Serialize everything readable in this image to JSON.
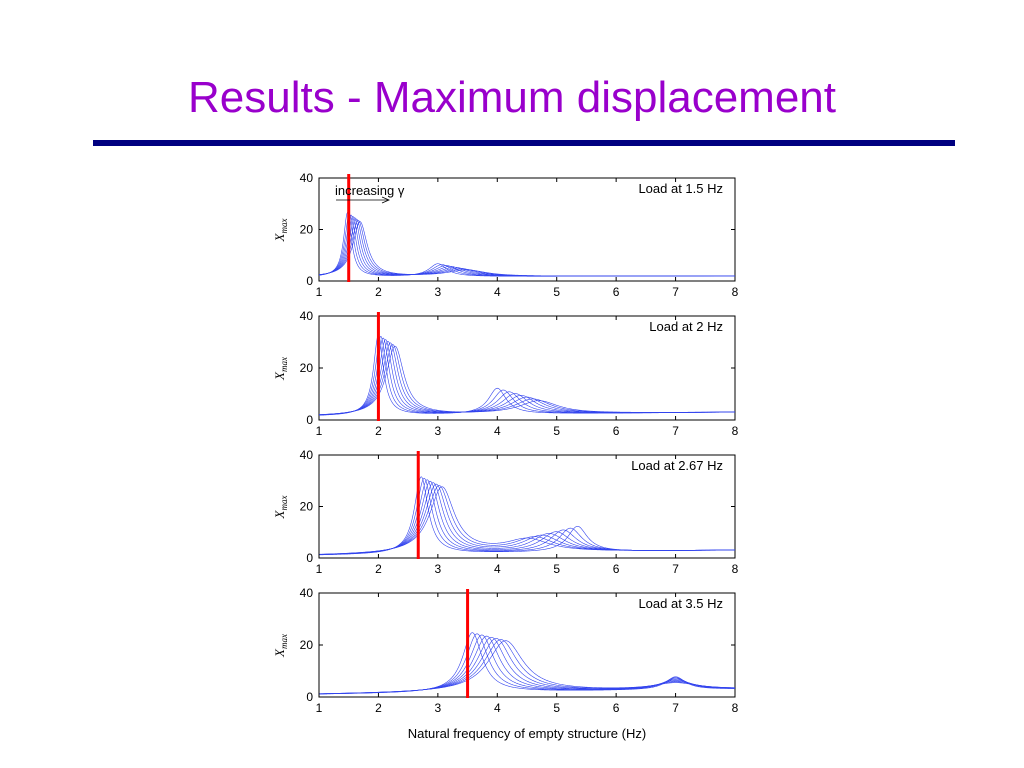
{
  "slide": {
    "title": "Results - Maximum displacement",
    "rule_color": "#000080",
    "title_color": "#9900cc"
  },
  "chart_data": [
    {
      "type": "line",
      "title": "Load at 1.5 Hz",
      "load_frequency": 1.5,
      "ylabel": "X",
      "ylabel_subscript": "max",
      "xlim": [
        1,
        8
      ],
      "ylim": [
        0,
        40
      ],
      "xticks": [
        1,
        2,
        3,
        4,
        5,
        6,
        7,
        8
      ],
      "yticks": [
        0,
        20,
        40
      ],
      "annotation": "increasing γ",
      "marker_color": "#ff0000",
      "series_color": "#3344ee",
      "series_count": 8,
      "peak": {
        "start": 1.48,
        "step": 0.03,
        "width": 0.08,
        "height": 24,
        "base_end": 2
      },
      "peak2": {
        "start": 3.0,
        "step": 0.07,
        "width": 0.18,
        "height": 5
      },
      "base": {
        "start": 1.5,
        "end": 2
      }
    },
    {
      "type": "line",
      "title": "Load at 2 Hz",
      "load_frequency": 2.0,
      "ylabel": "X",
      "ylabel_subscript": "max",
      "xlim": [
        1,
        8
      ],
      "ylim": [
        0,
        40
      ],
      "xticks": [
        1,
        2,
        3,
        4,
        5,
        6,
        7,
        8
      ],
      "yticks": [
        0,
        20,
        40
      ],
      "marker_color": "#ff0000",
      "series_color": "#3344ee",
      "series_count": 8,
      "peak": {
        "start": 2.0,
        "step": 0.04,
        "width": 0.1,
        "height": 30
      },
      "peak2": {
        "start": 4.0,
        "step": 0.1,
        "width": 0.18,
        "height": 10
      },
      "base": {
        "start": 1.5,
        "end": 3
      }
    },
    {
      "type": "line",
      "title": "Load at 2.67 Hz",
      "load_frequency": 2.67,
      "ylabel": "X",
      "ylabel_subscript": "max",
      "xlim": [
        1,
        8
      ],
      "ylim": [
        0,
        40
      ],
      "xticks": [
        1,
        2,
        3,
        4,
        5,
        6,
        7,
        8
      ],
      "yticks": [
        0,
        20,
        40
      ],
      "marker_color": "#ff0000",
      "series_color": "#3344ee",
      "series_count": 8,
      "peak": {
        "start": 2.72,
        "step": 0.05,
        "width": 0.14,
        "height": 29
      },
      "peak2": {
        "start": 5.35,
        "step": -0.12,
        "width": 0.2,
        "height": 10
      },
      "base": {
        "start": 1,
        "end": 3
      }
    },
    {
      "type": "line",
      "title": "Load at 3.5 Hz",
      "load_frequency": 3.5,
      "xlabel": "Natural frequency of empty structure (Hz)",
      "ylabel": "X",
      "ylabel_subscript": "max",
      "xlim": [
        1,
        8
      ],
      "ylim": [
        0,
        40
      ],
      "xticks": [
        1,
        2,
        3,
        4,
        5,
        6,
        7,
        8
      ],
      "yticks": [
        0,
        20,
        40
      ],
      "marker_color": "#ff0000",
      "series_color": "#3344ee",
      "series_count": 8,
      "peak": {
        "start": 3.58,
        "step": 0.08,
        "width": 0.2,
        "height": 22
      },
      "peak2": {
        "start": 7.0,
        "step": 0.0,
        "width": 0.2,
        "height": 5
      },
      "base": {
        "start": 1,
        "end": 3
      }
    }
  ]
}
